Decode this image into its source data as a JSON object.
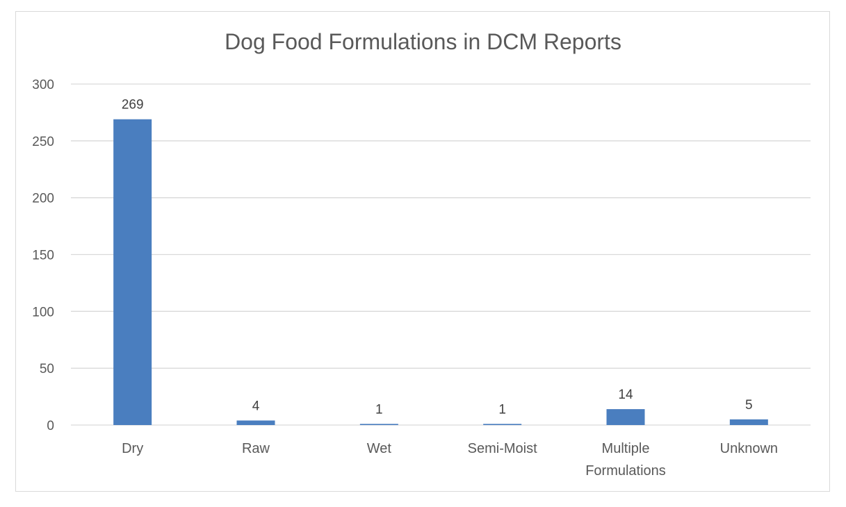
{
  "chart_data": {
    "type": "bar",
    "title": "Dog Food Formulations in DCM Reports",
    "categories": [
      [
        "Dry"
      ],
      [
        "Raw"
      ],
      [
        "Wet"
      ],
      [
        "Semi-Moist"
      ],
      [
        "Multiple",
        "Formulations"
      ],
      [
        "Unknown"
      ]
    ],
    "values": [
      269,
      4,
      1,
      1,
      14,
      5
    ],
    "data_labels": [
      "269",
      "4",
      "1",
      "1",
      "14",
      "5"
    ],
    "yticks": [
      "0",
      "50",
      "100",
      "150",
      "200",
      "250",
      "300"
    ],
    "ylim": [
      0,
      300
    ],
    "grid": true,
    "legend": false,
    "bar_color": "#4a7ebf",
    "grid_color": "#d9d9d9"
  }
}
